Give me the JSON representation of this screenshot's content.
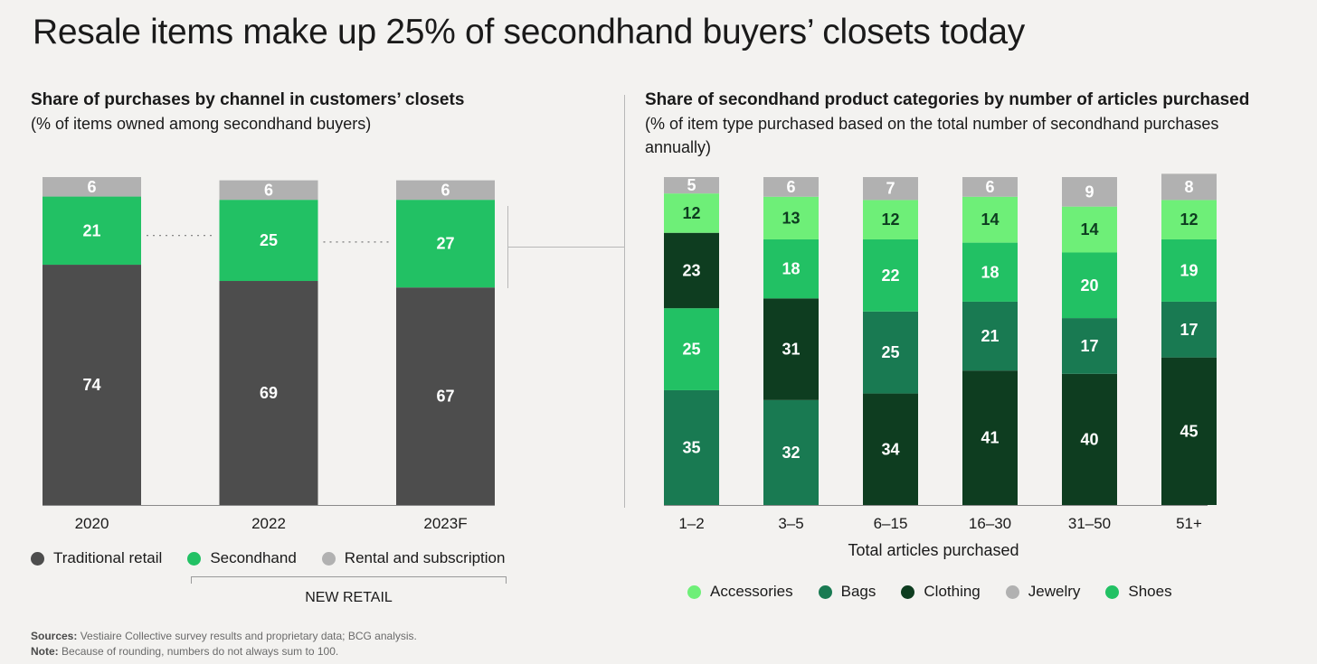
{
  "title": "Resale items make up 25% of secondhand buyers’ closets today",
  "colors": {
    "traditional": "#4d4d4d",
    "secondhand": "#22c164",
    "rental": "#b1b1b1",
    "accessories": "#6eef78",
    "bags": "#197a52",
    "clothing": "#0e3d20",
    "jewelry": "#b1b1b1",
    "shoes": "#22c164"
  },
  "left": {
    "subtitle": "Share of purchases by channel in customers’ closets",
    "note": "(% of items owned among secondhand buyers)",
    "legend": [
      {
        "label": "Traditional retail",
        "color": "#4d4d4d",
        "icon": "legend-dot"
      },
      {
        "label": "Secondhand",
        "color": "#22c164",
        "icon": "legend-dot"
      },
      {
        "label": "Rental and subscription",
        "color": "#b1b1b1",
        "icon": "legend-dot"
      }
    ],
    "bracket_label": "NEW RETAIL"
  },
  "right": {
    "subtitle": "Share of secondhand product categories by number of articles purchased",
    "note": "(% of item type purchased based on the total number of  secondhand purchases annually)",
    "legend": [
      {
        "label": "Accessories",
        "color": "#6eef78",
        "icon": "legend-dot"
      },
      {
        "label": "Bags",
        "color": "#197a52",
        "icon": "legend-dot"
      },
      {
        "label": "Clothing",
        "color": "#0e3d20",
        "icon": "legend-dot"
      },
      {
        "label": "Jewelry",
        "color": "#b1b1b1",
        "icon": "legend-dot"
      },
      {
        "label": "Shoes",
        "color": "#22c164",
        "icon": "legend-dot"
      }
    ]
  },
  "footer": {
    "sources_label": "Sources:",
    "sources_text": "Vestiaire Collective survey results and proprietary data; BCG analysis.",
    "note_label": "Note:",
    "note_text": "Because of rounding, numbers do not always sum to 100."
  },
  "chart_data": [
    {
      "type": "bar",
      "stacked": true,
      "title": "Share of purchases by channel in customers’ closets",
      "ylabel": "% of items owned among secondhand buyers",
      "xlabel": "",
      "ylim": [
        0,
        101
      ],
      "categories": [
        "2020",
        "2022",
        "2023F"
      ],
      "series": [
        {
          "name": "Traditional retail",
          "color": "#4d4d4d",
          "label_color": "#ffffff",
          "values": [
            74,
            69,
            67
          ]
        },
        {
          "name": "Secondhand",
          "color": "#22c164",
          "label_color": "#ffffff",
          "values": [
            21,
            25,
            27
          ]
        },
        {
          "name": "Rental and subscription",
          "color": "#b1b1b1",
          "label_color": "#ffffff",
          "values": [
            6,
            6,
            6
          ]
        }
      ]
    },
    {
      "type": "bar",
      "stacked": true,
      "title": "Share of secondhand product categories by number of articles purchased",
      "ylabel": "% of item type purchased",
      "xlabel": "Total articles purchased",
      "ylim": [
        0,
        100
      ],
      "categories": [
        "1–2",
        "3–5",
        "6–15",
        "16–30",
        "31–50",
        "51+"
      ],
      "series": [
        {
          "name": "Bags",
          "color": "#197a52",
          "label_color": "#ffffff",
          "values": [
            35,
            32,
            null,
            null,
            null,
            null
          ]
        },
        {
          "name": "Clothing",
          "color": "#0e3d20",
          "label_color": "#ffffff",
          "values": [
            null,
            null,
            34,
            41,
            40,
            45
          ]
        },
        {
          "name": "Shoes",
          "color": "#22c164",
          "label_color": "#ffffff",
          "values": [
            25,
            null,
            null,
            null,
            null,
            null
          ]
        },
        {
          "name": "Clothing",
          "color": "#0e3d20",
          "label_color": "#ffffff",
          "values": [
            23,
            31,
            null,
            null,
            null,
            null
          ]
        },
        {
          "name": "Bags",
          "color": "#197a52",
          "label_color": "#ffffff",
          "values": [
            null,
            null,
            25,
            21,
            17,
            17
          ]
        },
        {
          "name": "Shoes",
          "color": "#22c164",
          "label_color": "#ffffff",
          "values": [
            null,
            18,
            22,
            18,
            20,
            19
          ]
        },
        {
          "name": "Accessories",
          "color": "#6eef78",
          "label_color": "#0e3d20",
          "values": [
            12,
            13,
            12,
            14,
            14,
            12
          ]
        },
        {
          "name": "Jewelry",
          "color": "#b1b1b1",
          "label_color": "#ffffff",
          "values": [
            5,
            6,
            7,
            6,
            9,
            8
          ]
        }
      ]
    }
  ]
}
